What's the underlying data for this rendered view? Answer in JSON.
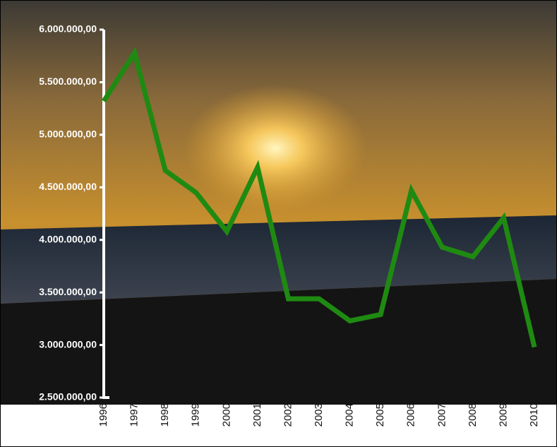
{
  "chart_data": {
    "type": "line",
    "categories": [
      "1996",
      "1997",
      "1998",
      "1999",
      "2000",
      "2001",
      "2002",
      "2003",
      "2004",
      "2005",
      "2006",
      "2007",
      "2008",
      "2009",
      "2010"
    ],
    "series": [
      {
        "color": "#1f8a12",
        "values": [
          5320000,
          5780000,
          4660000,
          4450000,
          4080000,
          4690000,
          3440000,
          3440000,
          3230000,
          3290000,
          4470000,
          3930000,
          3840000,
          4210000,
          2980000
        ]
      }
    ],
    "ylim": [
      2500000,
      6000000
    ],
    "yticks": [
      {
        "value": 2500000,
        "label": "2.500.000,00"
      },
      {
        "value": 3000000,
        "label": "3.000.000,00"
      },
      {
        "value": 3500000,
        "label": "3.500.000,00"
      },
      {
        "value": 4000000,
        "label": "4.000.000,00"
      },
      {
        "value": 4500000,
        "label": "4.500.000,00"
      },
      {
        "value": 5000000,
        "label": "5.000.000,00"
      },
      {
        "value": 5500000,
        "label": "5.500.000,00"
      },
      {
        "value": 6000000,
        "label": "6.000.000,00"
      }
    ],
    "grid": false
  }
}
